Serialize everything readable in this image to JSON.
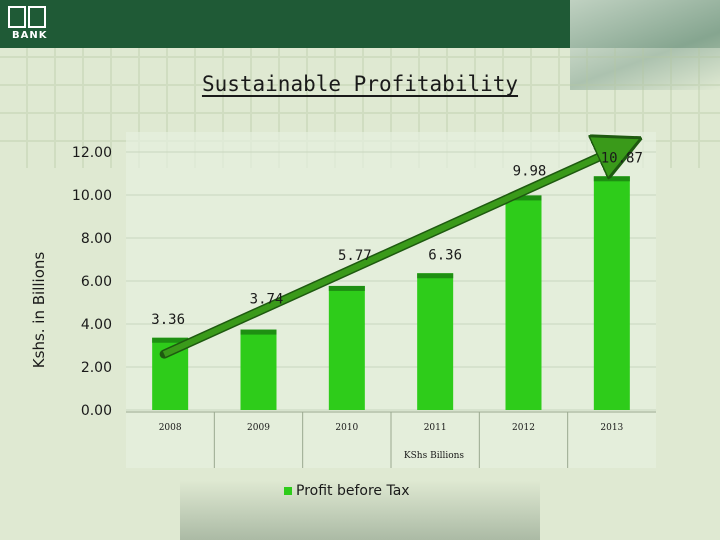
{
  "header": {
    "logo_text": "BANK"
  },
  "slide": {
    "title": "Sustainable Profitability"
  },
  "chart_data": {
    "type": "bar",
    "title": "",
    "categories": [
      "2008",
      "2009",
      "2010",
      "2011",
      "2012",
      "2013"
    ],
    "values": [
      3.36,
      3.74,
      5.77,
      6.36,
      9.98,
      10.87
    ],
    "data_labels": [
      "3.36",
      "3.74",
      "5.77",
      "6.36",
      "9.98",
      "10.87"
    ],
    "xlabel": "KShs Billions",
    "ylabel": "Kshs. in Billions",
    "ylim": [
      0,
      12
    ],
    "yticks": [
      "0.00",
      "2.00",
      "4.00",
      "6.00",
      "8.00",
      "10.00",
      "12.00"
    ],
    "grid": true,
    "legend": {
      "position": "bottom",
      "entries": [
        "Profit before Tax"
      ]
    },
    "colors": {
      "bar": "#2ecc1a",
      "bar_top": "#1e8f12",
      "trend": "#3a9a1a",
      "trend_outline": "#1e5a10"
    }
  }
}
